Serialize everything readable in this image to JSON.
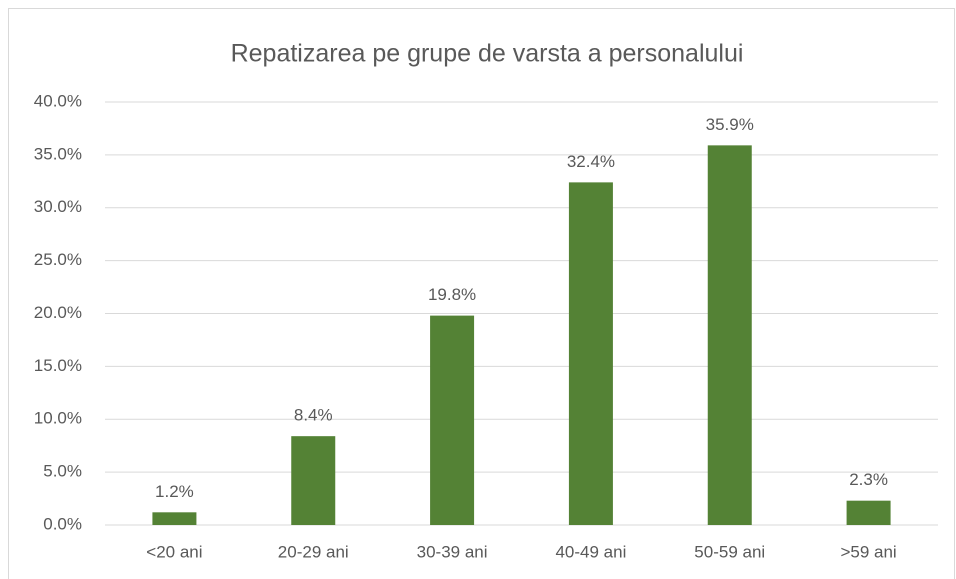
{
  "chart_data": {
    "type": "bar",
    "title": "Repatizarea pe grupe de varsta a personalului",
    "categories": [
      "<20 ani",
      "20-29 ani",
      "30-39 ani",
      "40-49 ani",
      "50-59 ani",
      ">59 ani"
    ],
    "values": [
      1.2,
      8.4,
      19.8,
      32.4,
      35.9,
      2.3
    ],
    "value_labels": [
      "1.2%",
      "8.4%",
      "19.8%",
      "32.4%",
      "35.9%",
      "2.3%"
    ],
    "color": "#548235",
    "ylim": [
      0,
      40
    ],
    "yticks": [
      {
        "value": 0,
        "label": "0.0%"
      },
      {
        "value": 5,
        "label": "5.0%"
      },
      {
        "value": 10,
        "label": "10.0%"
      },
      {
        "value": 15,
        "label": "15.0%"
      },
      {
        "value": 20,
        "label": "20.0%"
      },
      {
        "value": 25,
        "label": "25.0%"
      },
      {
        "value": 30,
        "label": "30.0%"
      },
      {
        "value": 35,
        "label": "35.0%"
      },
      {
        "value": 40,
        "label": "40.0%"
      }
    ],
    "grid": true
  }
}
